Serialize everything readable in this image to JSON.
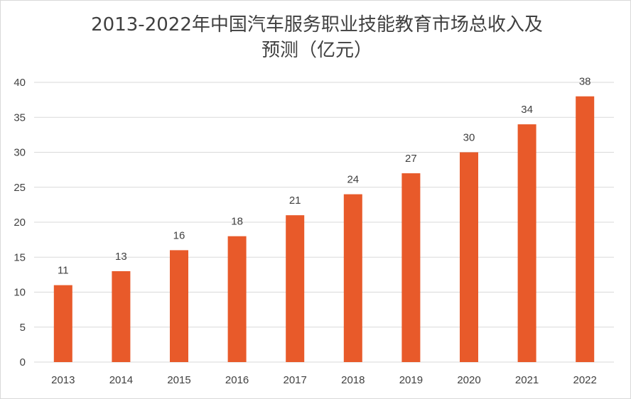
{
  "chart_data": {
    "type": "bar",
    "title_lines": [
      "2013-2022年中国汽车服务职业技能教育市场总收入及",
      "预测（亿元）"
    ],
    "categories": [
      "2013",
      "2014",
      "2015",
      "2016",
      "2017",
      "2018",
      "2019",
      "2020",
      "2021",
      "2022"
    ],
    "values": [
      11,
      13,
      16,
      18,
      21,
      24,
      27,
      30,
      34,
      38
    ],
    "data_labels": [
      "11",
      "13",
      "16",
      "18",
      "21",
      "24",
      "27",
      "30",
      "34",
      "38"
    ],
    "y_ticks": [
      "0",
      "5",
      "10",
      "15",
      "20",
      "25",
      "30",
      "35",
      "40"
    ],
    "ylim": [
      0,
      40
    ],
    "grid": true,
    "legend": "none",
    "colors": {
      "bar": "#E85A2A",
      "grid": "#d9d9d9",
      "text": "#404040"
    }
  }
}
